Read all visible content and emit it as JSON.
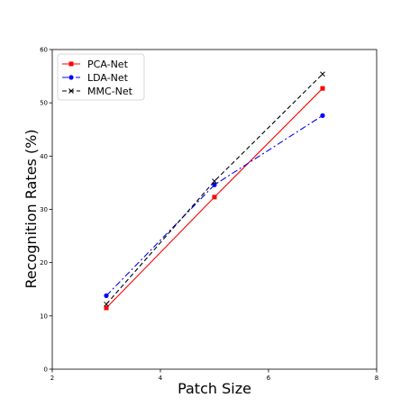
{
  "chart_data": {
    "type": "line",
    "title": "",
    "xlabel": "Patch Size",
    "ylabel": "Recognition Rates (%)",
    "xlim": [
      2,
      8
    ],
    "ylim": [
      0,
      60
    ],
    "xticks": [
      2,
      4,
      6,
      8
    ],
    "yticks": [
      0,
      10,
      20,
      30,
      40,
      50,
      60
    ],
    "grid": false,
    "legend_position": "top-left",
    "series": [
      {
        "name": "PCA-Net",
        "x": [
          3,
          5,
          7
        ],
        "y": [
          11.5,
          32.3,
          52.7
        ],
        "color": "#ff0000",
        "linestyle": "solid",
        "marker": "square"
      },
      {
        "name": "LDA-Net",
        "x": [
          3,
          5,
          7
        ],
        "y": [
          13.8,
          34.6,
          47.6
        ],
        "color": "#0000ff",
        "linestyle": "dashdot",
        "marker": "circle"
      },
      {
        "name": "MMC-Net",
        "x": [
          3,
          5,
          7
        ],
        "y": [
          12.2,
          35.3,
          55.4
        ],
        "color": "#000000",
        "linestyle": "dashed",
        "marker": "x"
      }
    ]
  }
}
